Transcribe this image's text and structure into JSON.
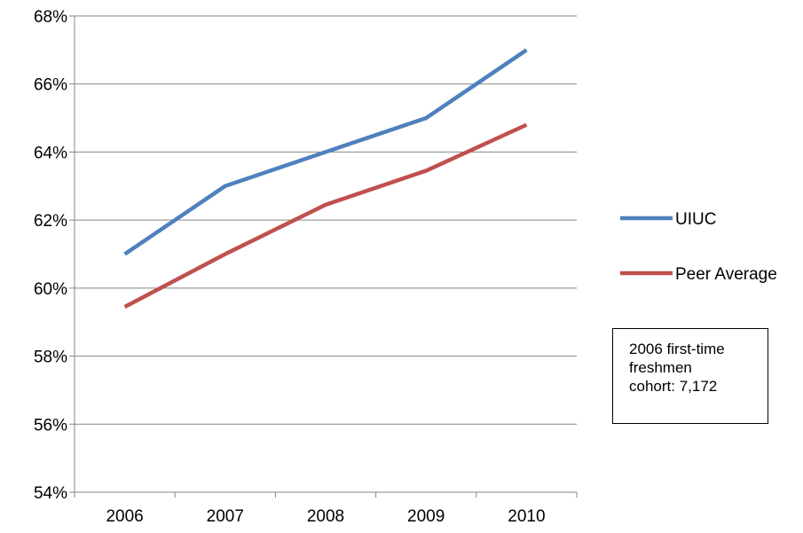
{
  "chart_data": {
    "type": "line",
    "title": "",
    "xlabel": "",
    "ylabel": "",
    "categories": [
      "2006",
      "2007",
      "2008",
      "2009",
      "2010"
    ],
    "y_ticks": [
      "54%",
      "56%",
      "58%",
      "60%",
      "62%",
      "64%",
      "66%",
      "68%"
    ],
    "ylim": [
      54,
      68
    ],
    "y_unit": "%",
    "grid": true,
    "legend_position": "right",
    "series": [
      {
        "name": "UIUC",
        "values": [
          61.0,
          63.0,
          64.0,
          65.0,
          67.0
        ],
        "color": "#4F81BD"
      },
      {
        "name": "Peer Average",
        "values": [
          59.45,
          61.0,
          62.45,
          63.45,
          64.8
        ],
        "color": "#C0504D"
      }
    ],
    "annotation": {
      "lines": [
        "2006 first-time",
        "freshmen",
        "cohort: 7,172"
      ]
    }
  }
}
